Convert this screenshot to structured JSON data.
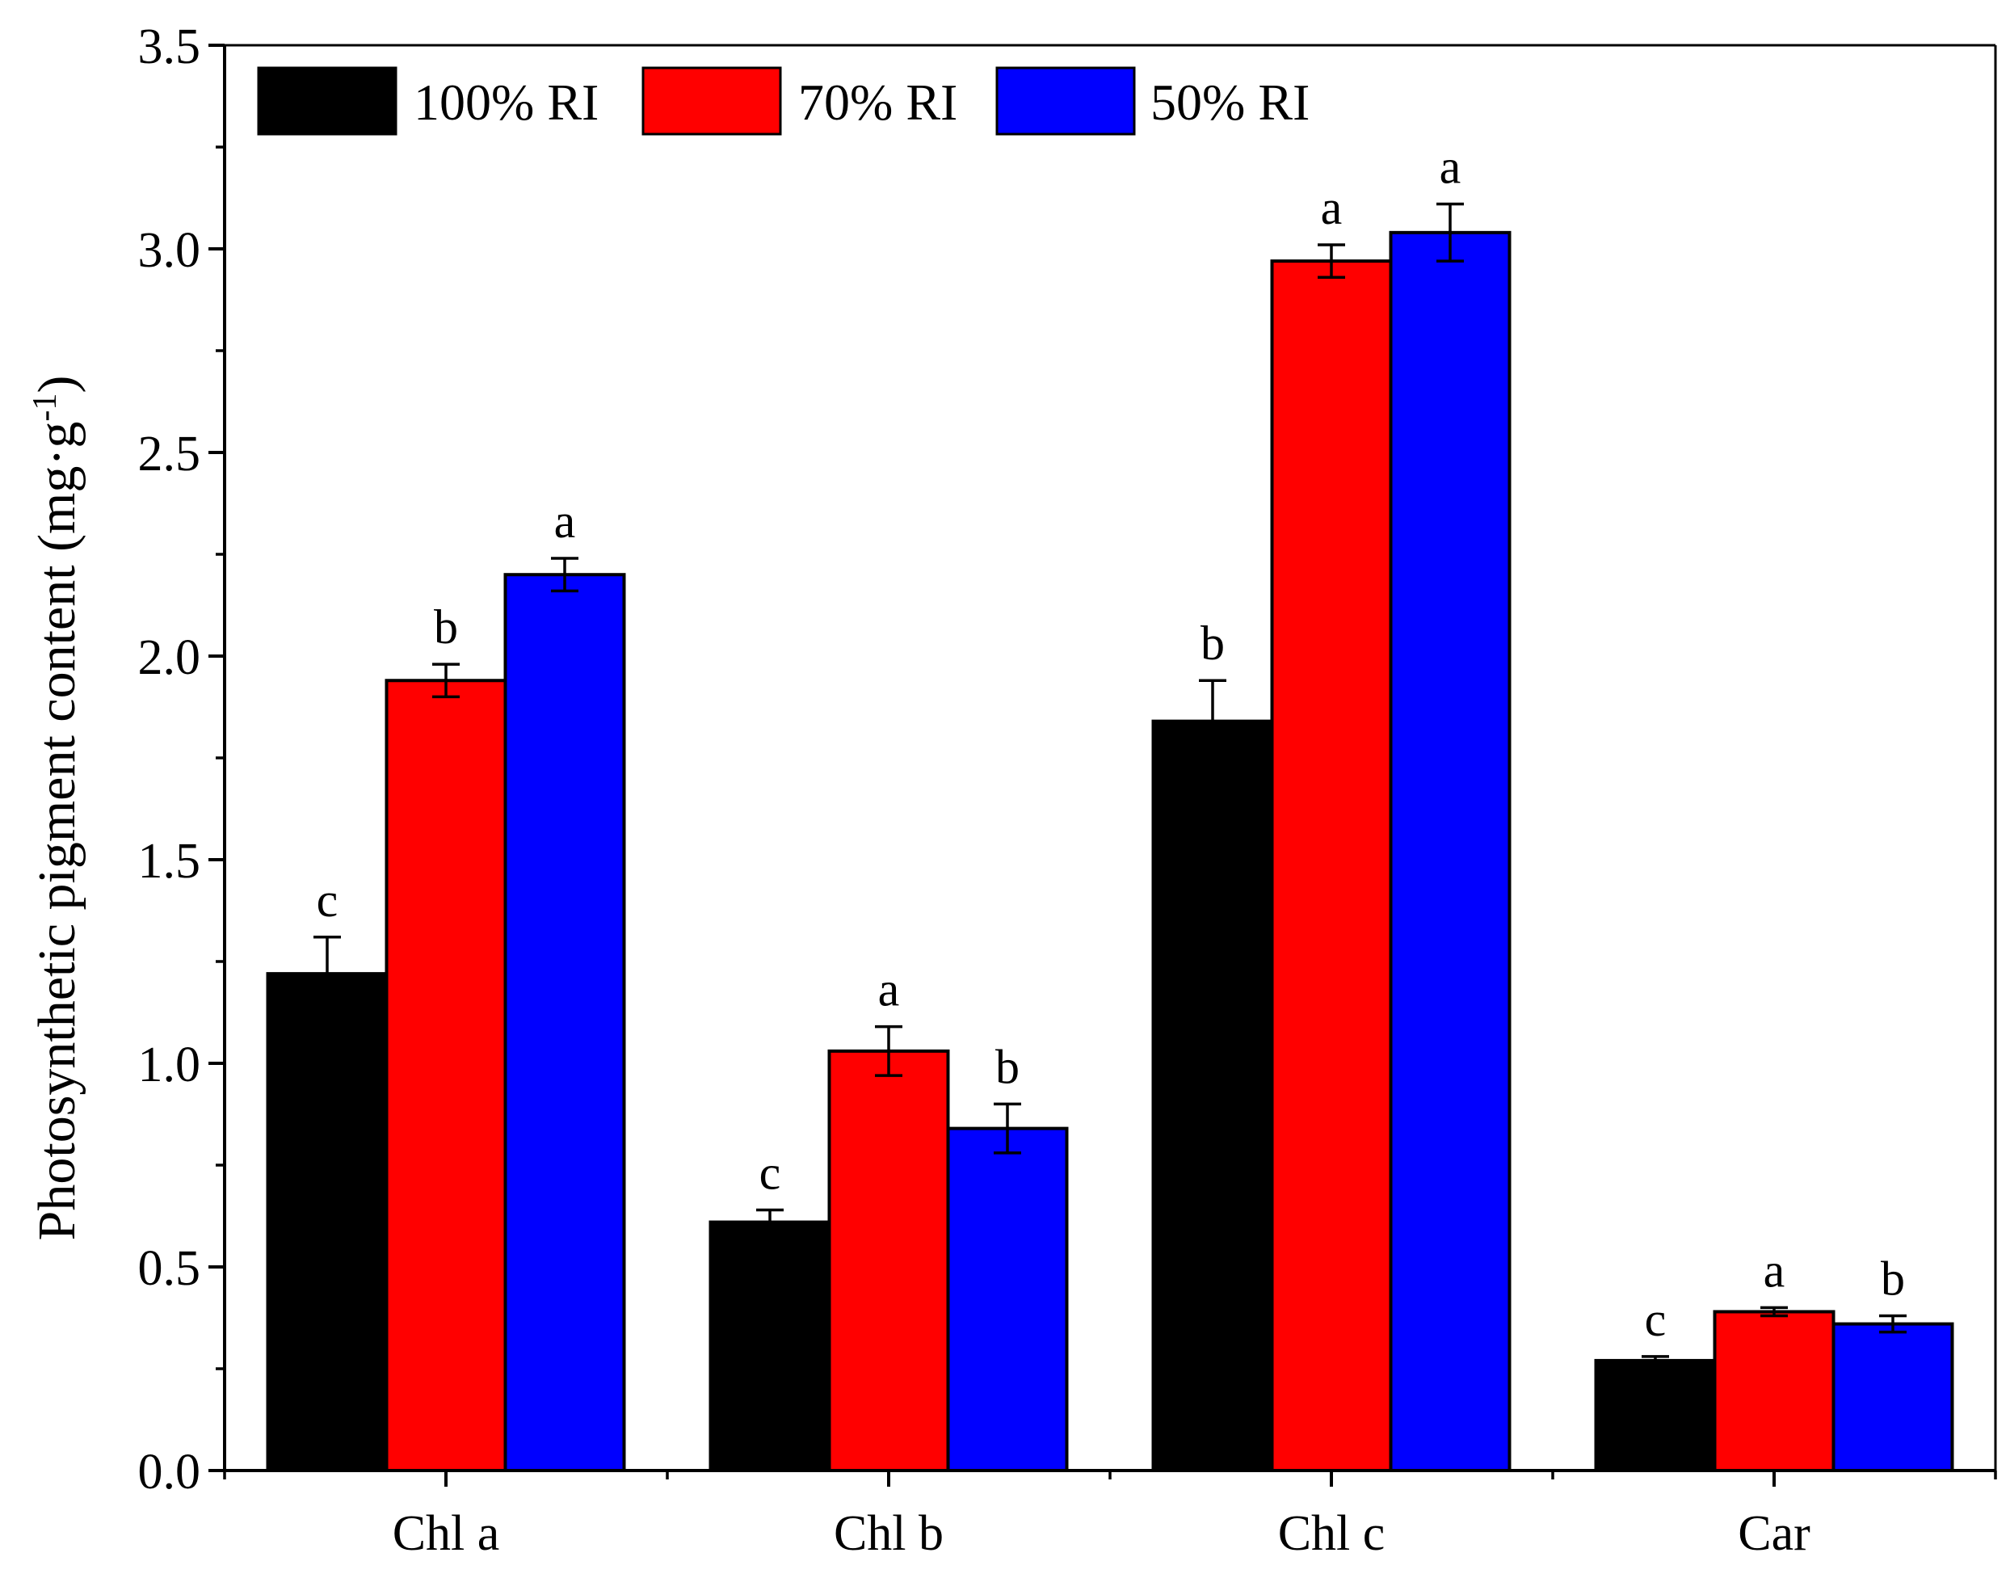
{
  "chart_data": {
    "type": "bar",
    "title": "",
    "xlabel": "",
    "ylabel": "Photosynthetic pigment content (mg·g",
    "ylabel_superscript": "-1",
    "ylabel_close": ")",
    "ylim": [
      0,
      3.5
    ],
    "yticks": [
      "0.0",
      "0.5",
      "1.0",
      "1.5",
      "2.0",
      "2.5",
      "3.0",
      "3.5"
    ],
    "ytick_values": [
      0,
      0.5,
      1.0,
      1.5,
      2.0,
      2.5,
      3.0,
      3.5
    ],
    "categories": [
      "Chl a",
      "Chl b",
      "Chl c",
      "Car"
    ],
    "legend_position": "top-left",
    "series": [
      {
        "name": "100% RI",
        "color": "#000000",
        "values": [
          1.22,
          0.61,
          1.84,
          0.27
        ],
        "errors": [
          0.09,
          0.03,
          0.1,
          0.01
        ],
        "letters": [
          "c",
          "c",
          "b",
          "c"
        ]
      },
      {
        "name": "70% RI",
        "color": "#ff0000",
        "values": [
          1.94,
          1.03,
          2.97,
          0.39
        ],
        "errors": [
          0.04,
          0.06,
          0.04,
          0.01
        ],
        "letters": [
          "b",
          "a",
          "a",
          "a"
        ]
      },
      {
        "name": "50% RI",
        "color": "#0000ff",
        "values": [
          2.2,
          0.84,
          3.04,
          0.36
        ],
        "errors": [
          0.04,
          0.06,
          0.07,
          0.02
        ],
        "letters": [
          "a",
          "b",
          "a",
          "b"
        ]
      }
    ]
  }
}
